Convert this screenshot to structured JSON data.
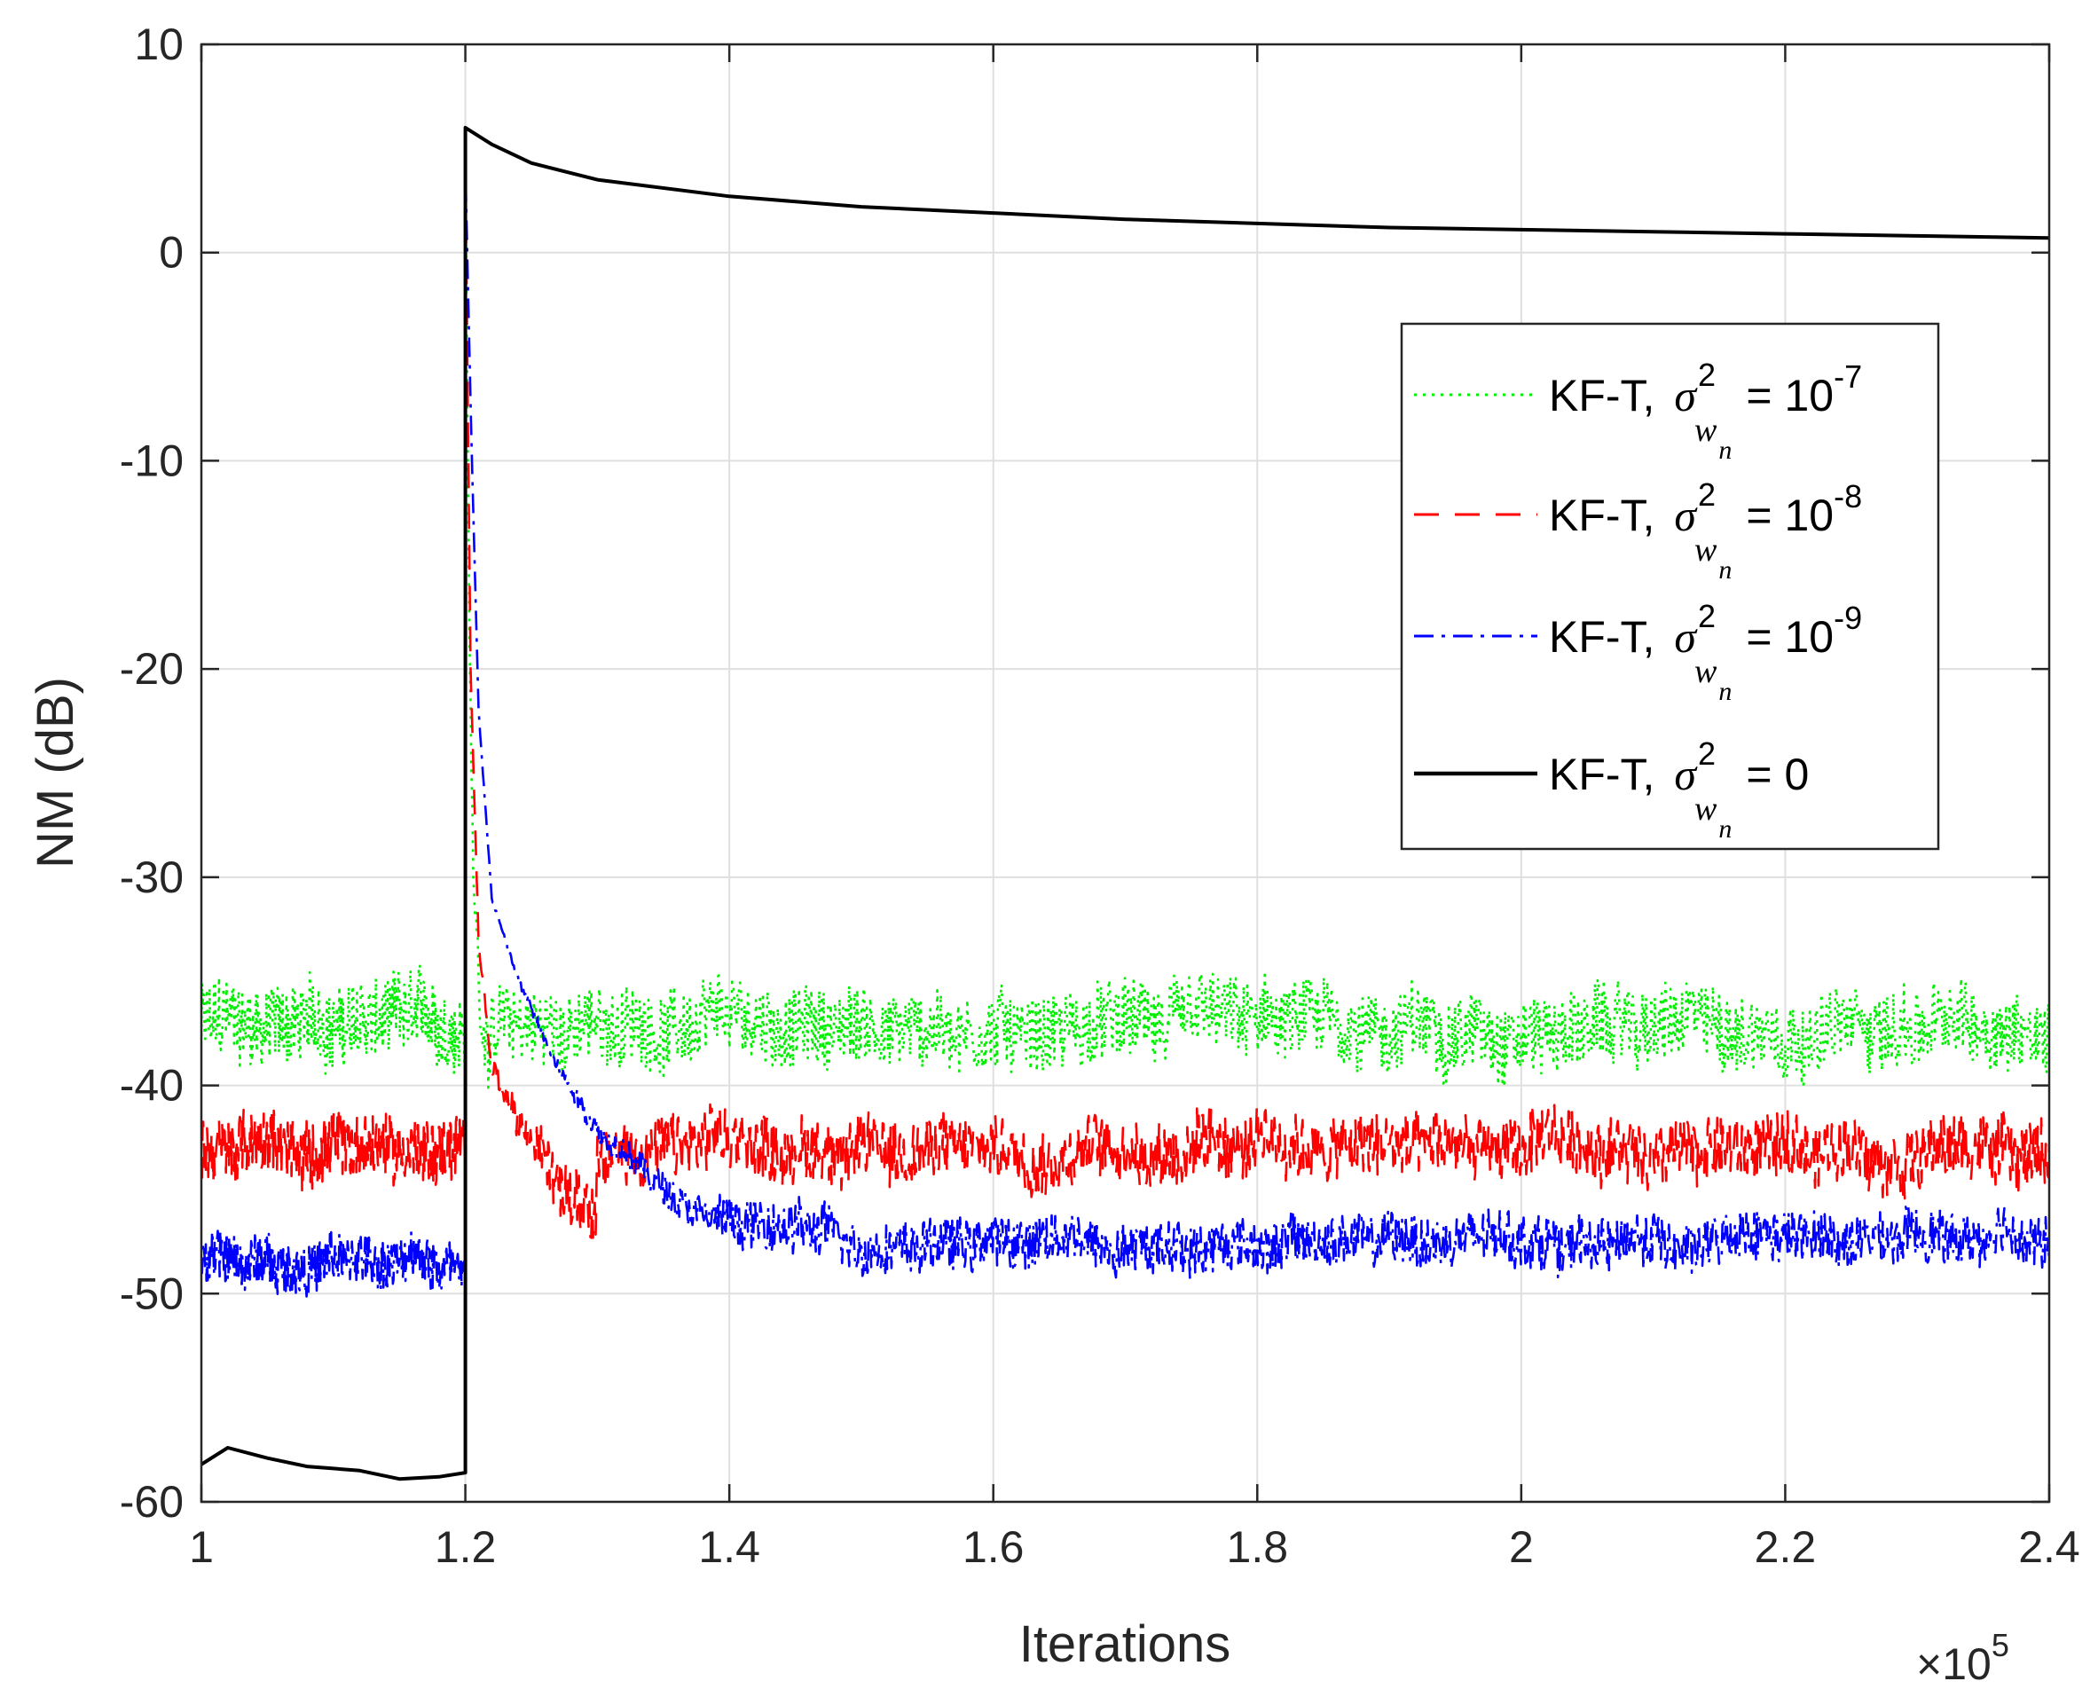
{
  "chart_data": {
    "type": "line",
    "title": "",
    "xlabel": "Iterations",
    "ylabel": "NM (dB)",
    "x_exponent_label": "×10",
    "x_exponent_power": "5",
    "xlim": [
      1,
      2.4
    ],
    "ylim": [
      -60,
      10
    ],
    "xticks": [
      1,
      1.2,
      1.4,
      1.6,
      1.8,
      2,
      2.2,
      2.4
    ],
    "xtick_labels": [
      "1",
      "1.2",
      "1.4",
      "1.6",
      "1.8",
      "2",
      "2.2",
      "2.4"
    ],
    "yticks": [
      10,
      0,
      -10,
      -20,
      -30,
      -40,
      -50,
      -60
    ],
    "ytick_labels": [
      "10",
      "0",
      "-10",
      "-20",
      "-30",
      "-40",
      "-50",
      "-60"
    ],
    "grid": true,
    "legend_position": "upper-right",
    "change_point": 1.2,
    "series": [
      {
        "name": "KF-T, σ²wn = 10-7",
        "legend_prefix": "KF-T,",
        "legend_sigma": "σ",
        "legend_sup": "2",
        "legend_sub": "w",
        "legend_subsub": "n",
        "legend_eq": "= 10",
        "legend_pow": "-7",
        "color": "#00ee00",
        "style": "dotted",
        "steady_before": -37,
        "steady_after": -37.2,
        "noise_amplitude": 2.4,
        "peak_after_change": 4,
        "decay_points": [
          [
            1.2,
            4
          ],
          [
            1.203,
            -18
          ],
          [
            1.206,
            -30
          ],
          [
            1.212,
            -37
          ],
          [
            1.22,
            -38
          ]
        ]
      },
      {
        "name": "KF-T, σ²wn = 10-8",
        "legend_prefix": "KF-T,",
        "legend_sigma": "σ",
        "legend_sup": "2",
        "legend_sub": "w",
        "legend_subsub": "n",
        "legend_eq": "= 10",
        "legend_pow": "-8",
        "color": "#ff0000",
        "style": "dashed",
        "steady_before": -43,
        "steady_after": -43,
        "noise_amplitude": 2.0,
        "peak_after_change": 4,
        "decay_points": [
          [
            1.2,
            4
          ],
          [
            1.204,
            -20
          ],
          [
            1.21,
            -33
          ],
          [
            1.22,
            -39
          ],
          [
            1.24,
            -42
          ],
          [
            1.27,
            -44.5
          ],
          [
            1.3,
            -45
          ]
        ]
      },
      {
        "name": "KF-T, σ²wn = 10-9",
        "legend_prefix": "KF-T,",
        "legend_sigma": "σ",
        "legend_sup": "2",
        "legend_sub": "w",
        "legend_subsub": "n",
        "legend_eq": "= 10",
        "legend_pow": "-9",
        "color": "#0000ff",
        "style": "dashdot",
        "steady_before": -48.5,
        "steady_after": -47.5,
        "noise_amplitude": 1.6,
        "peak_after_change": 4,
        "decay_points": [
          [
            1.2,
            4
          ],
          [
            1.205,
            -10
          ],
          [
            1.21,
            -22
          ],
          [
            1.22,
            -31
          ],
          [
            1.24,
            -35
          ],
          [
            1.27,
            -39
          ],
          [
            1.3,
            -42
          ],
          [
            1.35,
            -45
          ],
          [
            1.4,
            -46.5
          ],
          [
            1.5,
            -47.5
          ]
        ]
      },
      {
        "name": "KF-T, σ²wn = 0",
        "legend_prefix": "KF-T,",
        "legend_sigma": "σ",
        "legend_sup": "2",
        "legend_sub": "w",
        "legend_subsub": "n",
        "legend_eq": "= 0",
        "legend_pow": "",
        "color": "#000000",
        "style": "solid",
        "points_before": [
          [
            1.0,
            -58.2
          ],
          [
            1.02,
            -57.4
          ],
          [
            1.05,
            -57.9
          ],
          [
            1.08,
            -58.3
          ],
          [
            1.1,
            -58.4
          ],
          [
            1.12,
            -58.5
          ],
          [
            1.15,
            -58.9
          ],
          [
            1.18,
            -58.8
          ],
          [
            1.2,
            -58.6
          ]
        ],
        "points_after": [
          [
            1.2,
            6.0
          ],
          [
            1.22,
            5.2
          ],
          [
            1.25,
            4.3
          ],
          [
            1.3,
            3.5
          ],
          [
            1.4,
            2.7
          ],
          [
            1.5,
            2.2
          ],
          [
            1.6,
            1.9
          ],
          [
            1.7,
            1.6
          ],
          [
            1.8,
            1.4
          ],
          [
            1.9,
            1.2
          ],
          [
            2.0,
            1.1
          ],
          [
            2.1,
            1.0
          ],
          [
            2.2,
            0.9
          ],
          [
            2.3,
            0.8
          ],
          [
            2.4,
            0.7
          ]
        ]
      }
    ]
  }
}
